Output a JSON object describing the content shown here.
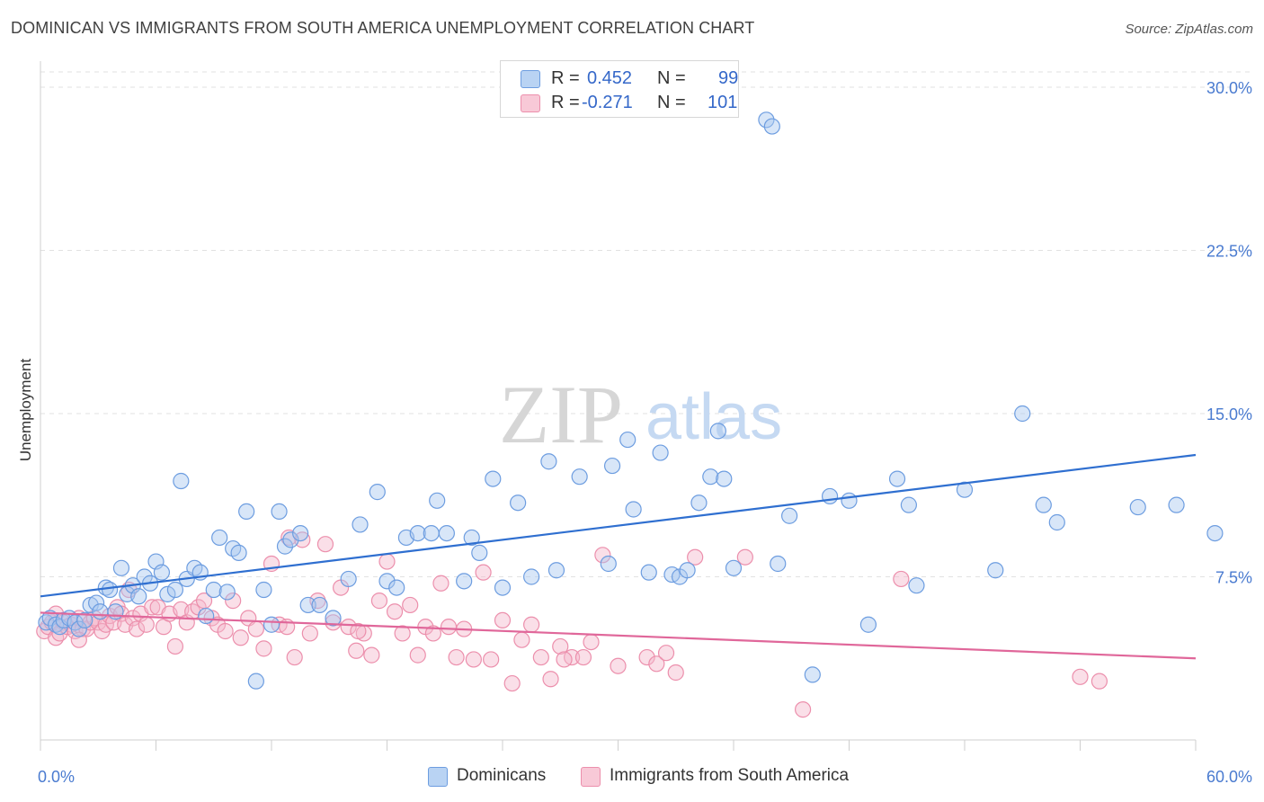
{
  "title": "DOMINICAN VS IMMIGRANTS FROM SOUTH AMERICA UNEMPLOYMENT CORRELATION CHART",
  "source": "Source: ZipAtlas.com",
  "watermark": {
    "zip": "ZIP",
    "atlas": "atlas"
  },
  "legend": {
    "r_label": "R =",
    "n_label": "N =",
    "series": [
      {
        "r": "0.452",
        "n": "99"
      },
      {
        "r": "-0.271",
        "n": "101"
      }
    ]
  },
  "bottom_legend": [
    "Dominicans",
    "Immigrants from South America"
  ],
  "colors": {
    "blue_fill": "#a8c8f0",
    "blue_stroke": "#6d9de0",
    "blue_line": "#2f6fd0",
    "pink_fill": "#f5b8cb",
    "pink_stroke": "#ec8fac",
    "pink_line": "#e0679a",
    "tick_text": "#4a7bd0",
    "grid": "#e2e2e2"
  },
  "chart_data": {
    "type": "scatter",
    "xlabel": "",
    "ylabel": "Unemployment",
    "xlim": [
      0,
      60
    ],
    "ylim": [
      0,
      30
    ],
    "x_tick_labels": [
      "0.0%",
      "60.0%"
    ],
    "y_ticks": [
      7.5,
      15.0,
      22.5,
      30.0
    ],
    "y_tick_labels": [
      "7.5%",
      "15.0%",
      "22.5%",
      "30.0%"
    ],
    "grid": "horizontal dashed",
    "legend_position": "top-center",
    "series": [
      {
        "name": "Dominicans",
        "trend": {
          "x": [
            0,
            60
          ],
          "y": [
            6.6,
            13.1
          ]
        },
        "points": [
          [
            0.3,
            5.4
          ],
          [
            0.5,
            5.6
          ],
          [
            0.8,
            5.3
          ],
          [
            1.0,
            5.2
          ],
          [
            1.2,
            5.5
          ],
          [
            1.5,
            5.6
          ],
          [
            1.8,
            5.4
          ],
          [
            2.0,
            5.1
          ],
          [
            2.3,
            5.5
          ],
          [
            2.6,
            6.2
          ],
          [
            2.9,
            6.3
          ],
          [
            3.1,
            5.9
          ],
          [
            3.4,
            7.0
          ],
          [
            3.6,
            6.9
          ],
          [
            3.9,
            5.9
          ],
          [
            4.2,
            7.9
          ],
          [
            4.5,
            6.7
          ],
          [
            4.8,
            7.1
          ],
          [
            5.1,
            6.6
          ],
          [
            5.4,
            7.5
          ],
          [
            5.7,
            7.2
          ],
          [
            6.0,
            8.2
          ],
          [
            6.3,
            7.7
          ],
          [
            6.6,
            6.7
          ],
          [
            7.0,
            6.9
          ],
          [
            7.3,
            11.9
          ],
          [
            7.6,
            7.4
          ],
          [
            8.0,
            7.9
          ],
          [
            8.3,
            7.7
          ],
          [
            8.6,
            5.7
          ],
          [
            9.0,
            6.9
          ],
          [
            9.3,
            9.3
          ],
          [
            9.7,
            6.8
          ],
          [
            10.0,
            8.8
          ],
          [
            10.3,
            8.6
          ],
          [
            10.7,
            10.5
          ],
          [
            11.2,
            2.7
          ],
          [
            11.6,
            6.9
          ],
          [
            12.0,
            5.3
          ],
          [
            12.4,
            10.5
          ],
          [
            12.7,
            8.9
          ],
          [
            13.0,
            9.2
          ],
          [
            13.5,
            9.5
          ],
          [
            13.9,
            6.2
          ],
          [
            14.5,
            6.2
          ],
          [
            15.2,
            5.6
          ],
          [
            16.0,
            7.4
          ],
          [
            16.6,
            9.9
          ],
          [
            17.5,
            11.4
          ],
          [
            18.0,
            7.3
          ],
          [
            18.5,
            7.0
          ],
          [
            19.0,
            9.3
          ],
          [
            19.6,
            9.5
          ],
          [
            20.3,
            9.5
          ],
          [
            20.6,
            11.0
          ],
          [
            21.1,
            9.5
          ],
          [
            22.0,
            7.3
          ],
          [
            22.4,
            9.3
          ],
          [
            22.8,
            8.6
          ],
          [
            23.5,
            12.0
          ],
          [
            24.0,
            7.0
          ],
          [
            24.8,
            10.9
          ],
          [
            25.5,
            7.5
          ],
          [
            26.4,
            12.8
          ],
          [
            26.8,
            7.8
          ],
          [
            28.0,
            12.1
          ],
          [
            29.5,
            8.1
          ],
          [
            29.7,
            12.6
          ],
          [
            30.5,
            13.8
          ],
          [
            30.8,
            10.6
          ],
          [
            31.6,
            7.7
          ],
          [
            32.2,
            13.2
          ],
          [
            32.8,
            7.6
          ],
          [
            33.2,
            7.5
          ],
          [
            33.6,
            7.8
          ],
          [
            34.2,
            10.9
          ],
          [
            34.8,
            12.1
          ],
          [
            35.2,
            14.2
          ],
          [
            35.5,
            12.0
          ],
          [
            36.0,
            7.9
          ],
          [
            37.7,
            28.5
          ],
          [
            38.0,
            28.2
          ],
          [
            38.3,
            8.1
          ],
          [
            38.9,
            10.3
          ],
          [
            40.1,
            3.0
          ],
          [
            41.0,
            11.2
          ],
          [
            42.0,
            11.0
          ],
          [
            43.0,
            5.3
          ],
          [
            44.5,
            12.0
          ],
          [
            45.1,
            10.8
          ],
          [
            45.5,
            7.1
          ],
          [
            48.0,
            11.5
          ],
          [
            49.6,
            7.8
          ],
          [
            51.0,
            15.0
          ],
          [
            52.1,
            10.8
          ],
          [
            52.8,
            10.0
          ],
          [
            57.0,
            10.7
          ],
          [
            59.0,
            10.8
          ],
          [
            61.0,
            9.5
          ]
        ]
      },
      {
        "name": "Immigrants from South America",
        "trend": {
          "x": [
            0,
            60
          ],
          "y": [
            5.85,
            3.75
          ]
        },
        "points": [
          [
            0.2,
            5.0
          ],
          [
            0.4,
            5.2
          ],
          [
            0.6,
            5.4
          ],
          [
            0.8,
            4.7
          ],
          [
            1.0,
            4.9
          ],
          [
            1.2,
            5.4
          ],
          [
            1.4,
            5.2
          ],
          [
            1.6,
            5.3
          ],
          [
            1.8,
            5.0
          ],
          [
            2.0,
            5.6
          ],
          [
            2.2,
            5.1
          ],
          [
            2.4,
            5.1
          ],
          [
            2.6,
            5.4
          ],
          [
            2.8,
            5.6
          ],
          [
            3.0,
            5.4
          ],
          [
            3.2,
            5.0
          ],
          [
            3.4,
            5.3
          ],
          [
            3.6,
            5.7
          ],
          [
            3.8,
            5.4
          ],
          [
            4.0,
            6.1
          ],
          [
            4.2,
            5.8
          ],
          [
            4.4,
            5.3
          ],
          [
            4.6,
            6.9
          ],
          [
            4.8,
            5.6
          ],
          [
            5.0,
            5.1
          ],
          [
            5.2,
            5.8
          ],
          [
            5.5,
            5.3
          ],
          [
            5.8,
            6.1
          ],
          [
            6.1,
            6.1
          ],
          [
            6.4,
            5.2
          ],
          [
            6.7,
            5.8
          ],
          [
            7.0,
            4.3
          ],
          [
            7.3,
            6.0
          ],
          [
            7.6,
            5.4
          ],
          [
            7.9,
            5.9
          ],
          [
            8.2,
            6.1
          ],
          [
            8.5,
            6.4
          ],
          [
            8.9,
            5.6
          ],
          [
            9.2,
            5.3
          ],
          [
            9.6,
            5.0
          ],
          [
            10.0,
            6.4
          ],
          [
            10.4,
            4.7
          ],
          [
            10.8,
            5.6
          ],
          [
            11.2,
            5.1
          ],
          [
            11.6,
            4.2
          ],
          [
            12.0,
            8.1
          ],
          [
            12.4,
            5.3
          ],
          [
            12.8,
            5.2
          ],
          [
            13.2,
            3.8
          ],
          [
            13.6,
            9.2
          ],
          [
            14.0,
            4.9
          ],
          [
            14.4,
            6.4
          ],
          [
            14.8,
            9.0
          ],
          [
            15.2,
            5.4
          ],
          [
            15.6,
            7.0
          ],
          [
            16.0,
            5.2
          ],
          [
            16.4,
            4.1
          ],
          [
            16.8,
            4.9
          ],
          [
            17.2,
            3.9
          ],
          [
            17.6,
            6.4
          ],
          [
            18.0,
            8.2
          ],
          [
            18.4,
            5.9
          ],
          [
            18.8,
            4.9
          ],
          [
            19.2,
            6.2
          ],
          [
            19.6,
            3.9
          ],
          [
            20.0,
            5.2
          ],
          [
            20.4,
            4.9
          ],
          [
            20.8,
            7.2
          ],
          [
            21.2,
            5.2
          ],
          [
            21.6,
            3.8
          ],
          [
            22.0,
            5.1
          ],
          [
            22.5,
            3.7
          ],
          [
            23.0,
            7.7
          ],
          [
            23.4,
            3.7
          ],
          [
            24.0,
            5.5
          ],
          [
            24.5,
            2.6
          ],
          [
            25.0,
            4.6
          ],
          [
            25.5,
            5.3
          ],
          [
            26.0,
            3.8
          ],
          [
            26.5,
            2.8
          ],
          [
            27.0,
            4.3
          ],
          [
            27.6,
            3.8
          ],
          [
            28.2,
            3.8
          ],
          [
            28.6,
            4.5
          ],
          [
            29.2,
            8.5
          ],
          [
            30.0,
            3.4
          ],
          [
            31.5,
            3.8
          ],
          [
            32.0,
            3.5
          ],
          [
            32.5,
            4.0
          ],
          [
            33.0,
            3.1
          ],
          [
            34.0,
            8.4
          ],
          [
            36.6,
            8.4
          ],
          [
            39.6,
            1.4
          ],
          [
            44.7,
            7.4
          ],
          [
            54.0,
            2.9
          ],
          [
            55.0,
            2.7
          ],
          [
            2.0,
            4.6
          ],
          [
            0.8,
            5.8
          ],
          [
            12.9,
            9.3
          ],
          [
            16.5,
            5.0
          ],
          [
            27.2,
            3.7
          ]
        ]
      }
    ]
  }
}
